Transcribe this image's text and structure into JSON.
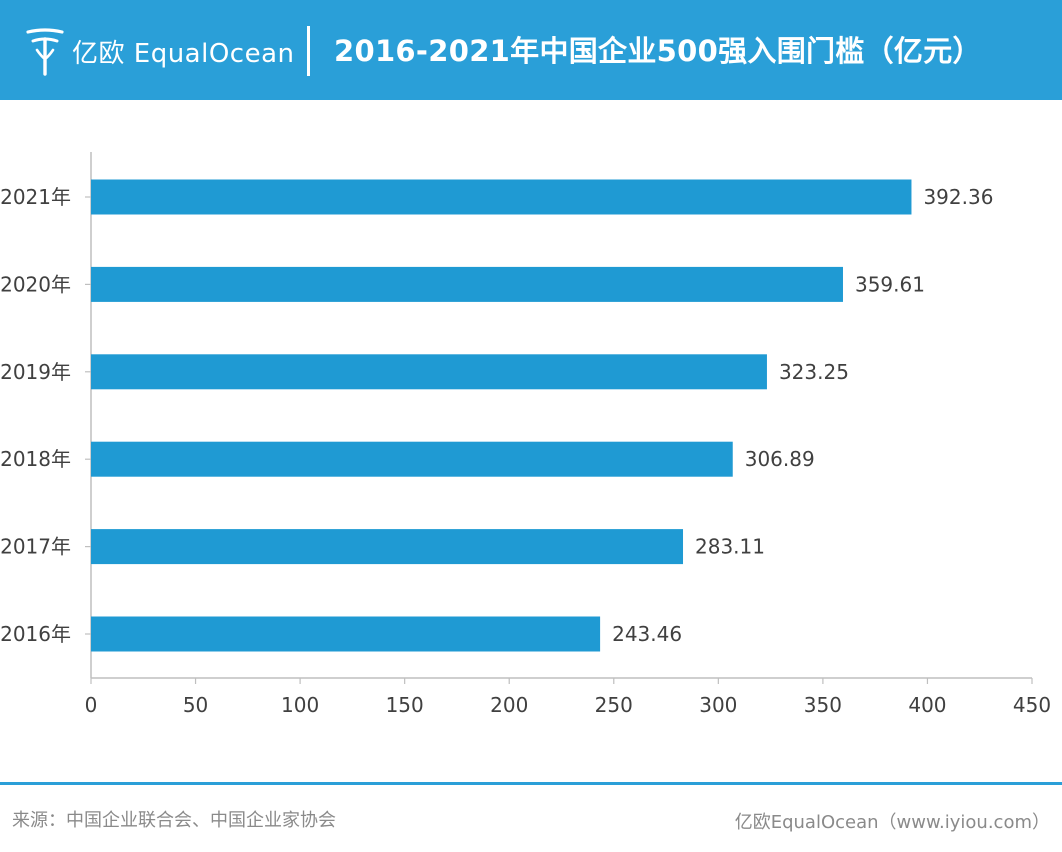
{
  "brand": {
    "name": "亿欧 EqualOcean"
  },
  "colors": {
    "header_bg": "#2a9fd8",
    "bar": "#1f9ad3",
    "axis": "#bfbfbf",
    "text": "#404040",
    "footer_text": "#8a8a8a"
  },
  "chart_data": {
    "type": "bar",
    "orientation": "horizontal",
    "title": "2016-2021年中国企业500强入围门槛（亿元）",
    "categories": [
      "2021年",
      "2020年",
      "2019年",
      "2018年",
      "2017年",
      "2016年"
    ],
    "values": [
      392.36,
      359.61,
      323.25,
      306.89,
      283.11,
      243.46
    ],
    "data_labels": [
      "392.36",
      "359.61",
      "323.25",
      "306.89",
      "283.11",
      "243.46"
    ],
    "xlim": [
      0,
      450
    ],
    "xticks": [
      0,
      50,
      100,
      150,
      200,
      250,
      300,
      350,
      400,
      450
    ],
    "xlabel": "",
    "ylabel": "",
    "grid": false,
    "legend": "none"
  },
  "footer": {
    "source": "来源：中国企业联合会、中国企业家协会",
    "credit": "亿欧EqualOcean（www.iyiou.com）"
  }
}
